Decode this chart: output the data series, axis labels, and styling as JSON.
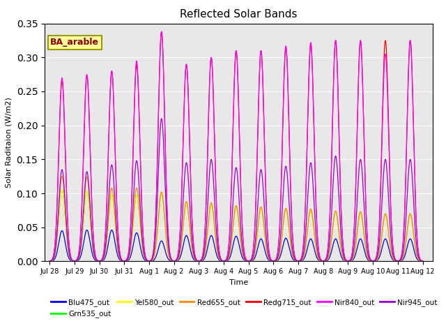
{
  "title": "Reflected Solar Bands",
  "xlabel": "Time",
  "ylabel": "Solar Raditaion (W/m2)",
  "annotation_text": "BA_arable",
  "ylim": [
    0,
    0.35
  ],
  "x_tick_labels": [
    "Jul 28",
    "Jul 29",
    "Jul 30",
    "Jul 31",
    "Aug 1",
    "Aug 2",
    "Aug 3",
    "Aug 4",
    "Aug 5",
    "Aug 6",
    "Aug 7",
    "Aug 8",
    "Aug 9",
    "Aug 10",
    "Aug 11",
    "Aug 12"
  ],
  "bands": [
    {
      "name": "Blu475_out",
      "color": "#0000ff"
    },
    {
      "name": "Grn535_out",
      "color": "#00ff00"
    },
    {
      "name": "Yel580_out",
      "color": "#ffff00"
    },
    {
      "name": "Red655_out",
      "color": "#ff8800"
    },
    {
      "name": "Redg715_out",
      "color": "#ff0000"
    },
    {
      "name": "Nir840_out",
      "color": "#ff00ff"
    },
    {
      "name": "Nir945_out",
      "color": "#9900cc"
    }
  ],
  "daily_peaks": {
    "Blu475_out": [
      0.045,
      0.046,
      0.046,
      0.042,
      0.03,
      0.038,
      0.038,
      0.037,
      0.033,
      0.034,
      0.033,
      0.033,
      0.033,
      0.033,
      0.033
    ],
    "Grn535_out": [
      0.105,
      0.103,
      0.098,
      0.098,
      0.1,
      0.085,
      0.083,
      0.08,
      0.078,
      0.077,
      0.075,
      0.073,
      0.072,
      0.069,
      0.069
    ],
    "Yel580_out": [
      0.105,
      0.103,
      0.098,
      0.098,
      0.1,
      0.085,
      0.083,
      0.08,
      0.078,
      0.077,
      0.075,
      0.073,
      0.072,
      0.069,
      0.069
    ],
    "Red655_out": [
      0.125,
      0.124,
      0.108,
      0.108,
      0.102,
      0.088,
      0.086,
      0.082,
      0.08,
      0.078,
      0.077,
      0.074,
      0.073,
      0.07,
      0.07
    ],
    "Redg715_out": [
      0.265,
      0.273,
      0.28,
      0.29,
      0.338,
      0.29,
      0.3,
      0.31,
      0.31,
      0.315,
      0.32,
      0.325,
      0.325,
      0.325,
      0.325
    ],
    "Nir840_out": [
      0.27,
      0.275,
      0.28,
      0.295,
      0.338,
      0.29,
      0.3,
      0.31,
      0.31,
      0.317,
      0.322,
      0.325,
      0.325,
      0.305,
      0.325
    ],
    "Nir945_out": [
      0.135,
      0.132,
      0.142,
      0.148,
      0.21,
      0.145,
      0.15,
      0.138,
      0.135,
      0.14,
      0.145,
      0.155,
      0.15,
      0.15,
      0.15
    ]
  },
  "background_color": "#ffffff",
  "plot_bg_color": "#e8e8e8",
  "yticks": [
    0.0,
    0.05,
    0.1,
    0.15,
    0.2,
    0.25,
    0.3,
    0.35
  ]
}
